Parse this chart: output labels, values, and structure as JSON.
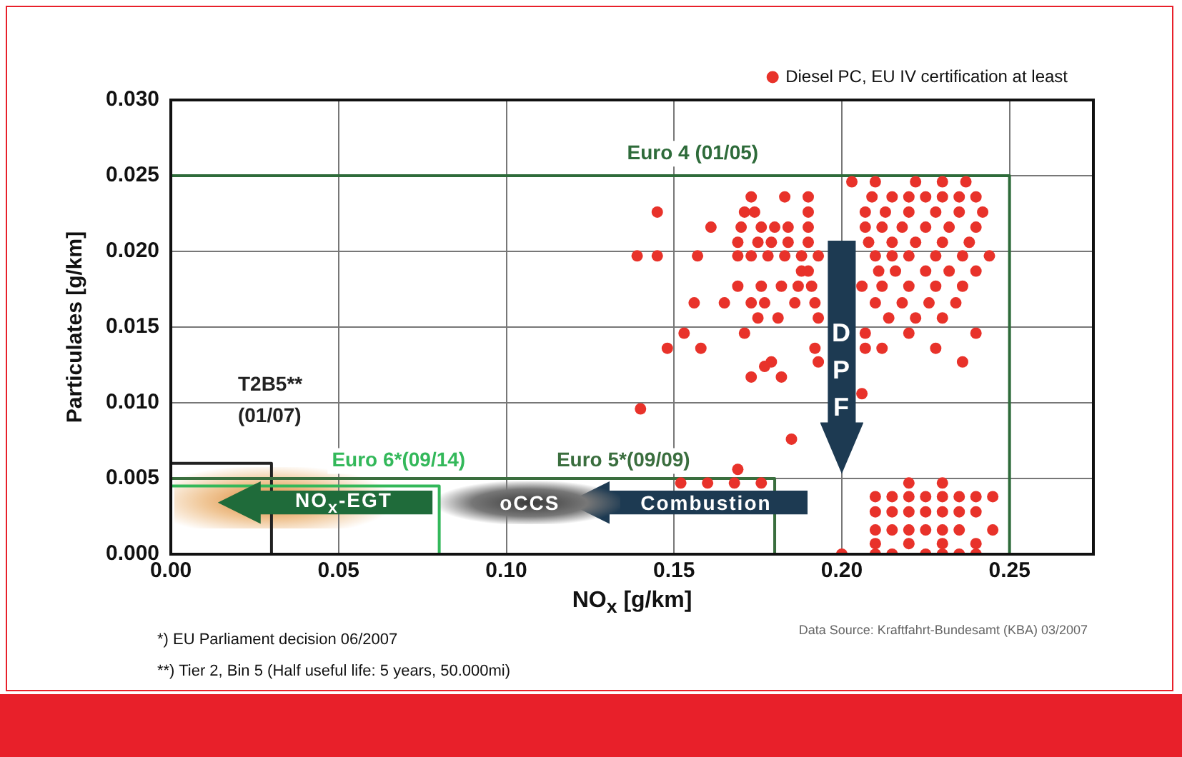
{
  "chart_data": {
    "type": "scatter",
    "xlabel": "NO$_{x}$ [g/km]",
    "ylabel": "Particulates [g/km]",
    "xlim": [
      0,
      0.275
    ],
    "ylim": [
      0,
      0.03
    ],
    "xticks": [
      {
        "value": 0,
        "label": "0.00"
      },
      {
        "value": 0.05,
        "label": "0.05"
      },
      {
        "value": 0.1,
        "label": "0.10"
      },
      {
        "value": 0.15,
        "label": "0.15"
      },
      {
        "value": 0.2,
        "label": "0.20"
      },
      {
        "value": 0.25,
        "label": "0.25"
      }
    ],
    "yticks": [
      {
        "value": 0,
        "label": "0.000"
      },
      {
        "value": 0.005,
        "label": "0.005"
      },
      {
        "value": 0.01,
        "label": "0.010"
      },
      {
        "value": 0.015,
        "label": "0.015"
      },
      {
        "value": 0.02,
        "label": "0.020"
      },
      {
        "value": 0.025,
        "label": "0.025"
      },
      {
        "value": 0.03,
        "label": "0.030"
      }
    ],
    "grid": true,
    "legend": "top right",
    "marker": "circle",
    "series": [
      {
        "name": "Diesel PC, EU IV certification at least",
        "color": "#e8322a",
        "x": [
          0.203,
          0.21,
          0.222,
          0.23,
          0.237,
          0.173,
          0.183,
          0.19,
          0.209,
          0.215,
          0.22,
          0.225,
          0.23,
          0.235,
          0.24,
          0.145,
          0.171,
          0.174,
          0.19,
          0.207,
          0.213,
          0.22,
          0.228,
          0.235,
          0.242,
          0.161,
          0.17,
          0.176,
          0.18,
          0.184,
          0.19,
          0.207,
          0.212,
          0.218,
          0.225,
          0.232,
          0.24,
          0.169,
          0.175,
          0.179,
          0.184,
          0.19,
          0.208,
          0.215,
          0.222,
          0.23,
          0.238,
          0.139,
          0.145,
          0.157,
          0.169,
          0.173,
          0.178,
          0.183,
          0.188,
          0.193,
          0.21,
          0.215,
          0.22,
          0.228,
          0.236,
          0.244,
          0.188,
          0.19,
          0.211,
          0.216,
          0.225,
          0.232,
          0.24,
          0.169,
          0.176,
          0.182,
          0.187,
          0.191,
          0.206,
          0.212,
          0.22,
          0.228,
          0.236,
          0.156,
          0.165,
          0.173,
          0.177,
          0.186,
          0.192,
          0.21,
          0.218,
          0.226,
          0.234,
          0.175,
          0.181,
          0.193,
          0.214,
          0.222,
          0.23,
          0.153,
          0.171,
          0.207,
          0.22,
          0.24,
          0.148,
          0.158,
          0.192,
          0.207,
          0.212,
          0.228,
          0.179,
          0.193,
          0.236,
          0.177,
          0.173,
          0.182,
          0.206,
          0.14,
          0.185,
          0.169,
          0.152,
          0.16,
          0.168,
          0.176,
          0.22,
          0.23,
          0.21,
          0.215,
          0.22,
          0.225,
          0.23,
          0.235,
          0.24,
          0.245,
          0.21,
          0.215,
          0.22,
          0.225,
          0.23,
          0.235,
          0.24,
          0.21,
          0.215,
          0.22,
          0.225,
          0.23,
          0.235,
          0.245,
          0.21,
          0.22,
          0.23,
          0.24,
          0.2,
          0.21,
          0.215,
          0.225,
          0.23,
          0.235,
          0.24
        ],
        "values": [
          0.0246,
          0.0246,
          0.0246,
          0.0246,
          0.0246,
          0.0236,
          0.0236,
          0.0236,
          0.0236,
          0.0236,
          0.0236,
          0.0236,
          0.0236,
          0.0236,
          0.0236,
          0.0226,
          0.0226,
          0.0226,
          0.0226,
          0.0226,
          0.0226,
          0.0226,
          0.0226,
          0.0226,
          0.0226,
          0.0216,
          0.0216,
          0.0216,
          0.0216,
          0.0216,
          0.0216,
          0.0216,
          0.0216,
          0.0216,
          0.0216,
          0.0216,
          0.0216,
          0.0206,
          0.0206,
          0.0206,
          0.0206,
          0.0206,
          0.0206,
          0.0206,
          0.0206,
          0.0206,
          0.0206,
          0.0197,
          0.0197,
          0.0197,
          0.0197,
          0.0197,
          0.0197,
          0.0197,
          0.0197,
          0.0197,
          0.0197,
          0.0197,
          0.0197,
          0.0197,
          0.0197,
          0.0197,
          0.0187,
          0.0187,
          0.0187,
          0.0187,
          0.0187,
          0.0187,
          0.0187,
          0.0177,
          0.0177,
          0.0177,
          0.0177,
          0.0177,
          0.0177,
          0.0177,
          0.0177,
          0.0177,
          0.0177,
          0.0166,
          0.0166,
          0.0166,
          0.0166,
          0.0166,
          0.0166,
          0.0166,
          0.0166,
          0.0166,
          0.0166,
          0.0156,
          0.0156,
          0.0156,
          0.0156,
          0.0156,
          0.0156,
          0.0146,
          0.0146,
          0.0146,
          0.0146,
          0.0146,
          0.0136,
          0.0136,
          0.0136,
          0.0136,
          0.0136,
          0.0136,
          0.0127,
          0.0127,
          0.0127,
          0.0124,
          0.0117,
          0.0117,
          0.0106,
          0.0096,
          0.0076,
          0.0056,
          0.0047,
          0.0047,
          0.0047,
          0.0047,
          0.0047,
          0.0047,
          0.0038,
          0.0038,
          0.0038,
          0.0038,
          0.0038,
          0.0038,
          0.0038,
          0.0038,
          0.0028,
          0.0028,
          0.0028,
          0.0028,
          0.0028,
          0.0028,
          0.0028,
          0.0016,
          0.0016,
          0.0016,
          0.0016,
          0.0016,
          0.0016,
          0.0016,
          0.0007,
          0.0007,
          0.0007,
          0.0007,
          0.0,
          0.0,
          0.0,
          0.0,
          0.0,
          0.0,
          0.0
        ]
      },
      {
        "type": "line",
        "name": "Euro 4 (01/05)",
        "color": "#2e6b3a",
        "marker": "none",
        "x": [
          0,
          0.25,
          0.25
        ],
        "values": [
          0.025,
          0.025,
          0
        ]
      },
      {
        "type": "line",
        "name": "Euro 5*(09/09)",
        "color": "#3a6e3e",
        "marker": "none",
        "x": [
          0,
          0.18,
          0.18
        ],
        "values": [
          0.005,
          0.005,
          0
        ]
      },
      {
        "type": "line",
        "name": "Euro 6*(09/14)",
        "color": "#33b85a",
        "marker": "none",
        "x": [
          0,
          0.08,
          0.08
        ],
        "values": [
          0.0045,
          0.0045,
          0
        ]
      },
      {
        "type": "line",
        "name": "T2B5**\n(01/07)",
        "color": "#222222",
        "marker": "none",
        "x": [
          0,
          0.03,
          0.03
        ],
        "values": [
          0.006,
          0.006,
          0
        ]
      }
    ],
    "annotations": [
      "DPF",
      "Combustion",
      "oCCS",
      "NO$_{x}$-EGT",
      "*) EU Parliament decision 06/2007",
      "**) Tier 2, Bin 5 (Half useful life: 5 years, 50.000mi)",
      "Data Source: Kraftfahrt-Bundesamt (KBA) 03/2007"
    ]
  }
}
